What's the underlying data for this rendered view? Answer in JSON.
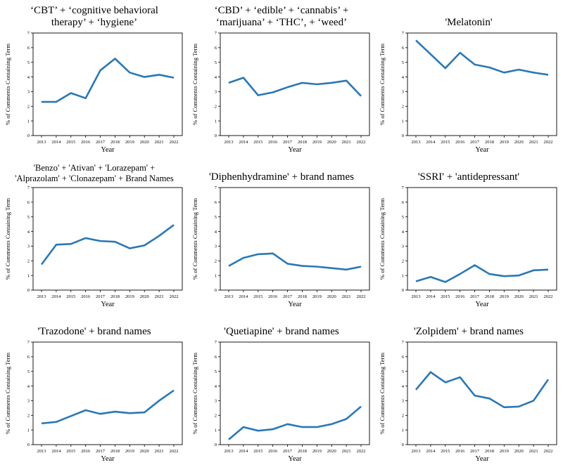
{
  "page": {
    "background": "#ffffff",
    "text_color": "#000000"
  },
  "chart_defaults": {
    "line_color": "#2878b8",
    "axis_color": "#000000",
    "xlabel": "Year",
    "ylabel": "% of Comments Containing Term",
    "ylim": [
      0,
      7
    ],
    "yticks": [
      0,
      1,
      2,
      3,
      4,
      5,
      6,
      7
    ],
    "grid": "off",
    "legend": "none"
  },
  "chart_data": [
    {
      "type": "line",
      "title": "‘CBT’ + ‘cognitive behavioral therapy’ + ‘hygiene’",
      "x": [
        2013,
        2014,
        2015,
        2016,
        2017,
        2018,
        2019,
        2020,
        2021,
        2022
      ],
      "values": [
        2.3,
        2.3,
        2.9,
        2.55,
        4.45,
        5.25,
        4.3,
        4.0,
        4.15,
        3.95
      ],
      "xlabel": "Year",
      "ylabel": "% of Comments Containing Term",
      "ylim": [
        0,
        7
      ]
    },
    {
      "type": "line",
      "title": "‘CBD’ + ‘edible’ + ‘cannabis’ + ‘marijuana’ + ‘THC’, + ‘weed’",
      "x": [
        2013,
        2014,
        2015,
        2016,
        2017,
        2018,
        2019,
        2020,
        2021,
        2022
      ],
      "values": [
        3.6,
        3.95,
        2.75,
        2.95,
        3.3,
        3.6,
        3.5,
        3.6,
        3.75,
        2.7
      ],
      "xlabel": "Year",
      "ylabel": "% of Comments Containing Term",
      "ylim": [
        0,
        7
      ]
    },
    {
      "type": "line",
      "title": "'Melatonin'",
      "x": [
        2013,
        2014,
        2015,
        2016,
        2017,
        2018,
        2019,
        2020,
        2021,
        2022
      ],
      "values": [
        6.5,
        5.55,
        4.6,
        5.65,
        4.85,
        4.65,
        4.3,
        4.5,
        4.3,
        4.15
      ],
      "xlabel": "Year",
      "ylabel": "% of Comments Containing Term",
      "ylim": [
        0,
        7
      ]
    },
    {
      "type": "line",
      "title": "'Benzo' + 'Ativan' + 'Lorazepam' + 'Alprazolam' + 'Clonazepam' + Brand Names",
      "x": [
        2013,
        2014,
        2015,
        2016,
        2017,
        2018,
        2019,
        2020,
        2021,
        2022
      ],
      "values": [
        1.75,
        3.1,
        3.15,
        3.55,
        3.35,
        3.3,
        2.85,
        3.05,
        3.7,
        4.45
      ],
      "xlabel": "Year",
      "ylabel": "% of Comments Containing Term",
      "ylim": [
        0,
        7
      ]
    },
    {
      "type": "line",
      "title": "'Diphenhydramine' + brand names",
      "x": [
        2013,
        2014,
        2015,
        2016,
        2017,
        2018,
        2019,
        2020,
        2021,
        2022
      ],
      "values": [
        1.65,
        2.2,
        2.45,
        2.5,
        1.8,
        1.65,
        1.6,
        1.5,
        1.4,
        1.6
      ],
      "xlabel": "Year",
      "ylabel": "% of Comments Containing Term",
      "ylim": [
        0,
        7
      ]
    },
    {
      "type": "line",
      "title": "'SSRI' + 'antidepressant'",
      "x": [
        2013,
        2014,
        2015,
        2016,
        2017,
        2018,
        2019,
        2020,
        2021,
        2022
      ],
      "values": [
        0.6,
        0.9,
        0.55,
        1.1,
        1.7,
        1.1,
        0.95,
        1.0,
        1.35,
        1.4
      ],
      "xlabel": "Year",
      "ylabel": "% of Comments Containing Term",
      "ylim": [
        0,
        7
      ]
    },
    {
      "type": "line",
      "title": "'Trazodone' + brand names",
      "x": [
        2013,
        2014,
        2015,
        2016,
        2017,
        2018,
        2019,
        2020,
        2021,
        2022
      ],
      "values": [
        1.45,
        1.55,
        1.95,
        2.35,
        2.1,
        2.25,
        2.15,
        2.2,
        3.0,
        3.7
      ],
      "xlabel": "Year",
      "ylabel": "% of Comments Containing Term",
      "ylim": [
        0,
        7
      ]
    },
    {
      "type": "line",
      "title": "'Quetiapine' + brand names",
      "x": [
        2013,
        2014,
        2015,
        2016,
        2017,
        2018,
        2019,
        2020,
        2021,
        2022
      ],
      "values": [
        0.35,
        1.2,
        0.95,
        1.05,
        1.4,
        1.2,
        1.2,
        1.4,
        1.75,
        2.6
      ],
      "xlabel": "Year",
      "ylabel": "% of Comments Containing Term",
      "ylim": [
        0,
        7
      ]
    },
    {
      "type": "line",
      "title": "'Zolpidem' + brand names",
      "x": [
        2013,
        2014,
        2015,
        2016,
        2017,
        2018,
        2019,
        2020,
        2021,
        2022
      ],
      "values": [
        3.75,
        4.95,
        4.25,
        4.6,
        3.35,
        3.15,
        2.55,
        2.6,
        3.0,
        4.45
      ],
      "xlabel": "Year",
      "ylabel": "% of Comments Containing Term",
      "ylim": [
        0,
        7
      ]
    }
  ]
}
